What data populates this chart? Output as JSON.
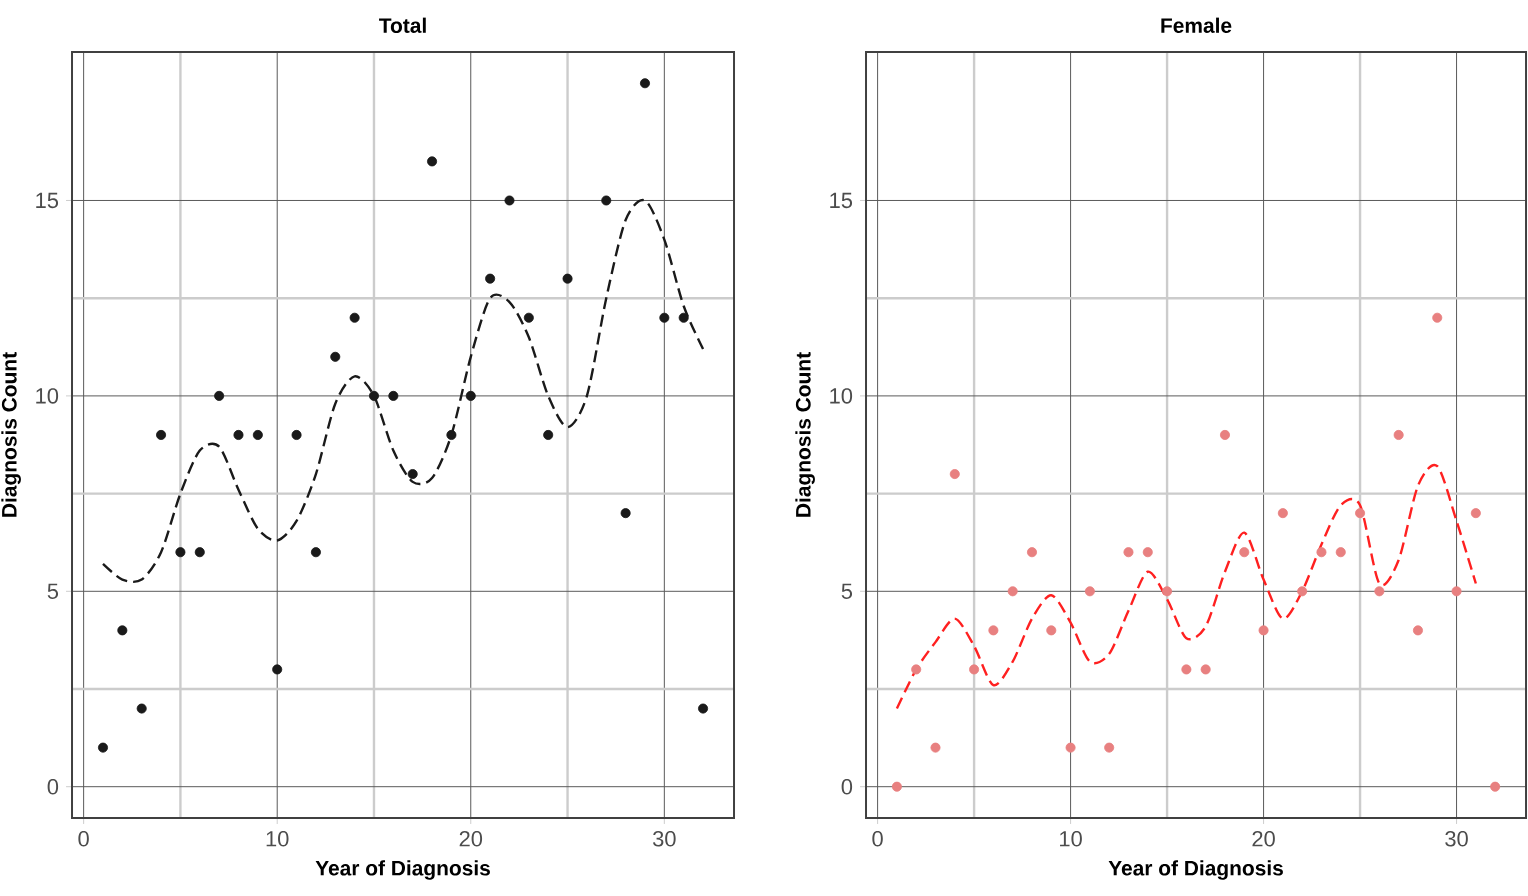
{
  "chart_data": [
    {
      "type": "scatter",
      "title": "Total",
      "xlabel": "Year of Diagnosis",
      "ylabel": "Diagnosis Count",
      "xlim": [
        -0.6,
        33.6
      ],
      "ylim": [
        -0.8,
        18.8
      ],
      "xticks": [
        0,
        10,
        20,
        30
      ],
      "yticks": [
        0,
        5,
        10,
        15
      ],
      "grid": true,
      "series": [
        {
          "marker": "circle",
          "color": "#1a1a1a",
          "x": [
            1,
            2,
            3,
            4,
            5,
            6,
            7,
            8,
            9,
            10,
            11,
            12,
            13,
            14,
            15,
            16,
            17,
            18,
            19,
            20,
            21,
            22,
            23,
            24,
            25,
            26,
            27,
            28,
            29,
            30,
            31,
            32
          ],
          "values": [
            1,
            4,
            2,
            9,
            6,
            6,
            10,
            9,
            9,
            3,
            9,
            6,
            11,
            12,
            10,
            10,
            8,
            16,
            9,
            10,
            13,
            15,
            12,
            9,
            13,
            null,
            15,
            7,
            18,
            12,
            12,
            2
          ]
        },
        {
          "type": "line",
          "marker": "none",
          "line_style": "dashed",
          "color": "#1a1a1a",
          "x": [
            1,
            2,
            3,
            4,
            5,
            6,
            7,
            8,
            9,
            10,
            11,
            12,
            13,
            14,
            15,
            16,
            17,
            18,
            19,
            20,
            21,
            22,
            23,
            24,
            25,
            26,
            27,
            28,
            29,
            30,
            31,
            32
          ],
          "values": [
            5.7,
            5.3,
            5.3,
            6,
            7.5,
            8.6,
            8.7,
            7.6,
            6.6,
            6.3,
            6.8,
            8,
            9.8,
            10.5,
            10,
            8.6,
            7.8,
            7.9,
            9,
            11,
            12.5,
            12.4,
            11.5,
            10,
            9.2,
            10,
            12.5,
            14.5,
            15,
            14,
            12.3,
            11.2
          ]
        }
      ]
    },
    {
      "type": "scatter",
      "title": "Female",
      "xlabel": "Year of Diagnosis",
      "ylabel": "Diagnosis Count",
      "xlim": [
        -0.6,
        33.6
      ],
      "ylim": [
        -0.8,
        18.8
      ],
      "xticks": [
        0,
        10,
        20,
        30
      ],
      "yticks": [
        0,
        5,
        10,
        15
      ],
      "grid": true,
      "series": [
        {
          "marker": "circle",
          "color": "#e88080",
          "x": [
            1,
            2,
            3,
            4,
            5,
            6,
            7,
            8,
            9,
            10,
            11,
            12,
            13,
            14,
            15,
            16,
            17,
            18,
            19,
            20,
            21,
            22,
            23,
            24,
            25,
            26,
            27,
            28,
            29,
            30,
            31,
            32
          ],
          "values": [
            0,
            3,
            1,
            8,
            3,
            4,
            5,
            6,
            4,
            1,
            5,
            1,
            6,
            6,
            5,
            3,
            3,
            9,
            6,
            4,
            7,
            5,
            6,
            6,
            7,
            5,
            9,
            4,
            12,
            5,
            7,
            0
          ]
        },
        {
          "type": "line",
          "marker": "none",
          "line_style": "dashed",
          "color": "#ff2020",
          "x": [
            1,
            2,
            3,
            4,
            5,
            6,
            7,
            8,
            9,
            10,
            11,
            12,
            13,
            14,
            15,
            16,
            17,
            18,
            19,
            20,
            21,
            22,
            23,
            24,
            25,
            26,
            27,
            28,
            29,
            30,
            31
          ],
          "values": [
            2,
            3,
            3.7,
            4.3,
            3.6,
            2.6,
            3.2,
            4.3,
            4.9,
            4.2,
            3.2,
            3.4,
            4.5,
            5.5,
            4.8,
            3.8,
            4.1,
            5.5,
            6.5,
            5.3,
            4.3,
            5,
            6.2,
            7.2,
            7.2,
            5.2,
            5.8,
            7.7,
            8.2,
            6.8,
            5.2
          ]
        }
      ]
    }
  ]
}
